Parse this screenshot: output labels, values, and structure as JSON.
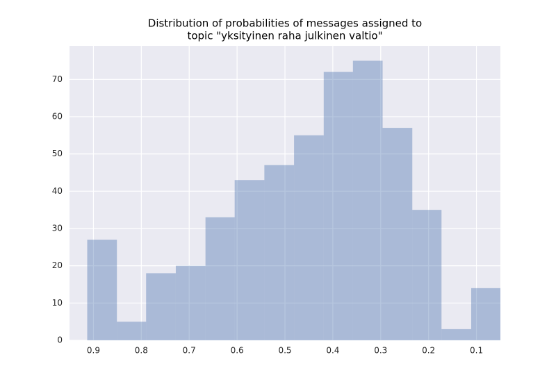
{
  "chart_data": {
    "type": "histogram",
    "title": [
      "Distribution of probabilities of messages assigned to",
      "topic \"yksityinen raha julkinen valtio\""
    ],
    "bins": [
      0.913,
      0.851,
      0.79,
      0.728,
      0.666,
      0.605,
      0.543,
      0.481,
      0.419,
      0.358,
      0.296,
      0.234,
      0.173,
      0.111,
      0.049
    ],
    "values": [
      27,
      5,
      18,
      20,
      33,
      43,
      47,
      55,
      72,
      75,
      57,
      35,
      3,
      14
    ],
    "color": "#4c72b0",
    "xlim": [
      0.95,
      0.05
    ],
    "xticks": [
      0.9,
      0.8,
      0.7,
      0.6,
      0.5,
      0.4,
      0.3,
      0.2,
      0.1
    ],
    "ylim": [
      0,
      79
    ],
    "yticks": [
      0,
      10,
      20,
      30,
      40,
      50,
      60,
      70
    ],
    "grid": true
  }
}
